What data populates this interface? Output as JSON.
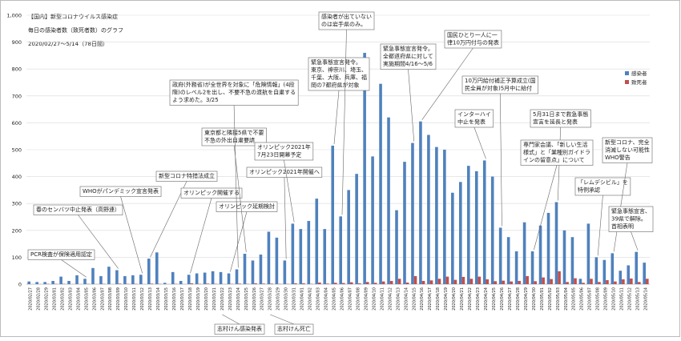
{
  "chart_data": {
    "type": "bar",
    "title": "【国内】新型コロナウイルス感染症",
    "subtitle": "毎日の感染者数（致死者数）のグラフ",
    "period": "2020/02/27～5/14（78日間）",
    "categories": [
      "2020/02/27",
      "2020/02/28",
      "2020/02/29",
      "2020/03/01",
      "2020/03/02",
      "2020/03/03",
      "2020/03/04",
      "2020/03/05",
      "2020/03/06",
      "2020/03/07",
      "2020/03/08",
      "2020/03/09",
      "2020/03/10",
      "2020/03/11",
      "2020/03/12",
      "2020/03/13",
      "2020/03/14",
      "2020/03/15",
      "2020/03/16",
      "2020/03/17",
      "2020/03/18",
      "2020/03/19",
      "2020/03/20",
      "2020/03/21",
      "2020/03/22",
      "2020/03/23",
      "2020/03/24",
      "2020/03/25",
      "2020/03/26",
      "2020/03/27",
      "2020/03/28",
      "2020/03/29",
      "2020/03/30",
      "2020/03/31",
      "2020/04/01",
      "2020/04/02",
      "2020/04/03",
      "2020/04/04",
      "2020/04/05",
      "2020/04/06",
      "2020/04/07",
      "2020/04/08",
      "2020/04/09",
      "2020/04/10",
      "2020/04/11",
      "2020/04/12",
      "2020/04/13",
      "2020/04/14",
      "2020/04/15",
      "2020/04/16",
      "2020/04/17",
      "2020/04/18",
      "2020/04/19",
      "2020/04/20",
      "2020/04/21",
      "2020/04/22",
      "2020/04/23",
      "2020/04/24",
      "2020/04/25",
      "2020/04/26",
      "2020/04/27",
      "2020/04/28",
      "2020/04/29",
      "2020/04/30",
      "2020/05/01",
      "2020/05/02",
      "2020/05/03",
      "2020/05/04",
      "2020/05/05",
      "2020/05/06",
      "2020/05/07",
      "2020/05/08",
      "2020/05/09",
      "2020/05/10",
      "2020/05/11",
      "2020/05/12",
      "2020/05/13",
      "2020/05/14"
    ],
    "series": [
      {
        "name": "感染者",
        "color": "#4f81bd",
        "values": [
          10,
          8,
          8,
          12,
          28,
          12,
          33,
          20,
          60,
          30,
          65,
          52,
          30,
          33,
          35,
          95,
          118,
          5,
          45,
          12,
          35,
          40,
          43,
          48,
          45,
          40,
          55,
          113,
          88,
          110,
          195,
          173,
          88,
          225,
          205,
          235,
          318,
          205,
          515,
          252,
          350,
          410,
          860,
          475,
          745,
          620,
          275,
          455,
          525,
          605,
          555,
          510,
          500,
          340,
          380,
          440,
          420,
          460,
          400,
          210,
          175,
          122,
          230,
          122,
          218,
          265,
          305,
          200,
          175,
          20,
          225,
          100,
          90,
          115,
          50,
          70,
          120,
          80
        ]
      },
      {
        "name": "致死者",
        "color": "#c0504d",
        "values": [
          0,
          0,
          1,
          1,
          1,
          0,
          0,
          1,
          0,
          1,
          0,
          2,
          1,
          1,
          0,
          2,
          1,
          0,
          1,
          0,
          3,
          1,
          2,
          1,
          0,
          1,
          2,
          1,
          3,
          2,
          2,
          1,
          1,
          3,
          3,
          1,
          6,
          2,
          5,
          4,
          7,
          3,
          8,
          5,
          10,
          12,
          20,
          6,
          30,
          12,
          14,
          20,
          28,
          16,
          27,
          20,
          28,
          18,
          11,
          13,
          10,
          12,
          30,
          11,
          25,
          19,
          48,
          8,
          22,
          5,
          20,
          8,
          15,
          10,
          18,
          21,
          8,
          20
        ]
      }
    ],
    "ylim": [
      0,
      1000
    ],
    "yticks": [
      0,
      100,
      200,
      300,
      400,
      500,
      600,
      700,
      800,
      900,
      {
        "value": 1000,
        "label": "1,000"
      }
    ],
    "grid": true,
    "legend": "right",
    "annotations": [
      {
        "text": [
          "PCR検査が保険適用認定"
        ]
      },
      {
        "text": [
          "春のセンバツ中止発表（高野連）"
        ]
      },
      {
        "text": [
          "WHOがパンデミック宣言発表"
        ]
      },
      {
        "text": [
          "新型コロナ特措法成立"
        ]
      },
      {
        "text": [
          "オリンピック開催する"
        ]
      },
      {
        "text": [
          "オリンピック延期検討"
        ]
      },
      {
        "text": [
          "東京都と隣接5県で不要",
          "不急の外出自粛要請"
        ]
      },
      {
        "text": [
          "政府(外務省)が全世界を対象に「危険情報」(4段",
          "階)のレベル2を出し、不要不急の渡航を自粛する",
          "よう求めた。3/25"
        ]
      },
      {
        "text": [
          "オリンピック2021年開催へ"
        ]
      },
      {
        "text": [
          "オリンピック2021年",
          "7月23日開幕予定"
        ]
      },
      {
        "text": [
          "緊急事態宣言発令。",
          "東京、神奈川、埼玉、",
          "千葉、大阪、兵庫、福",
          "岡の7都府県が対象"
        ]
      },
      {
        "text": [
          "感染者が出ていない",
          "のは岩手県のみ。"
        ]
      },
      {
        "text": [
          "緊急事態宣言発令。",
          "全都道府県に対して",
          "実施期間4/16～5/6"
        ]
      },
      {
        "text": [
          "国民ひとり一人に一",
          "律10万円付与の発表"
        ]
      },
      {
        "text": [
          "10万円給付補正予算成立(国",
          "民全員が対象)5月中に給付"
        ]
      },
      {
        "text": [
          "インターハイ",
          "中止を発表"
        ]
      },
      {
        "text": [
          "5月31日まで救急事態",
          "宣言を延長と発表"
        ]
      },
      {
        "text": [
          "専門家会議、「新しい生活",
          "様式」と「業種別ガイドラ",
          "インの留意点」について"
        ]
      },
      {
        "text": [
          "「レムデシビル」を",
          "特例承認"
        ]
      },
      {
        "text": [
          "新型コロナ、完全",
          "消滅しない可能性",
          "WHO警告"
        ]
      },
      {
        "text": [
          "緊急事態宣言、",
          "39県で解除。",
          "首相表明"
        ]
      },
      {
        "text": [
          "志村けん感染発表"
        ]
      },
      {
        "text": [
          "志村けん死亡"
        ]
      }
    ]
  }
}
